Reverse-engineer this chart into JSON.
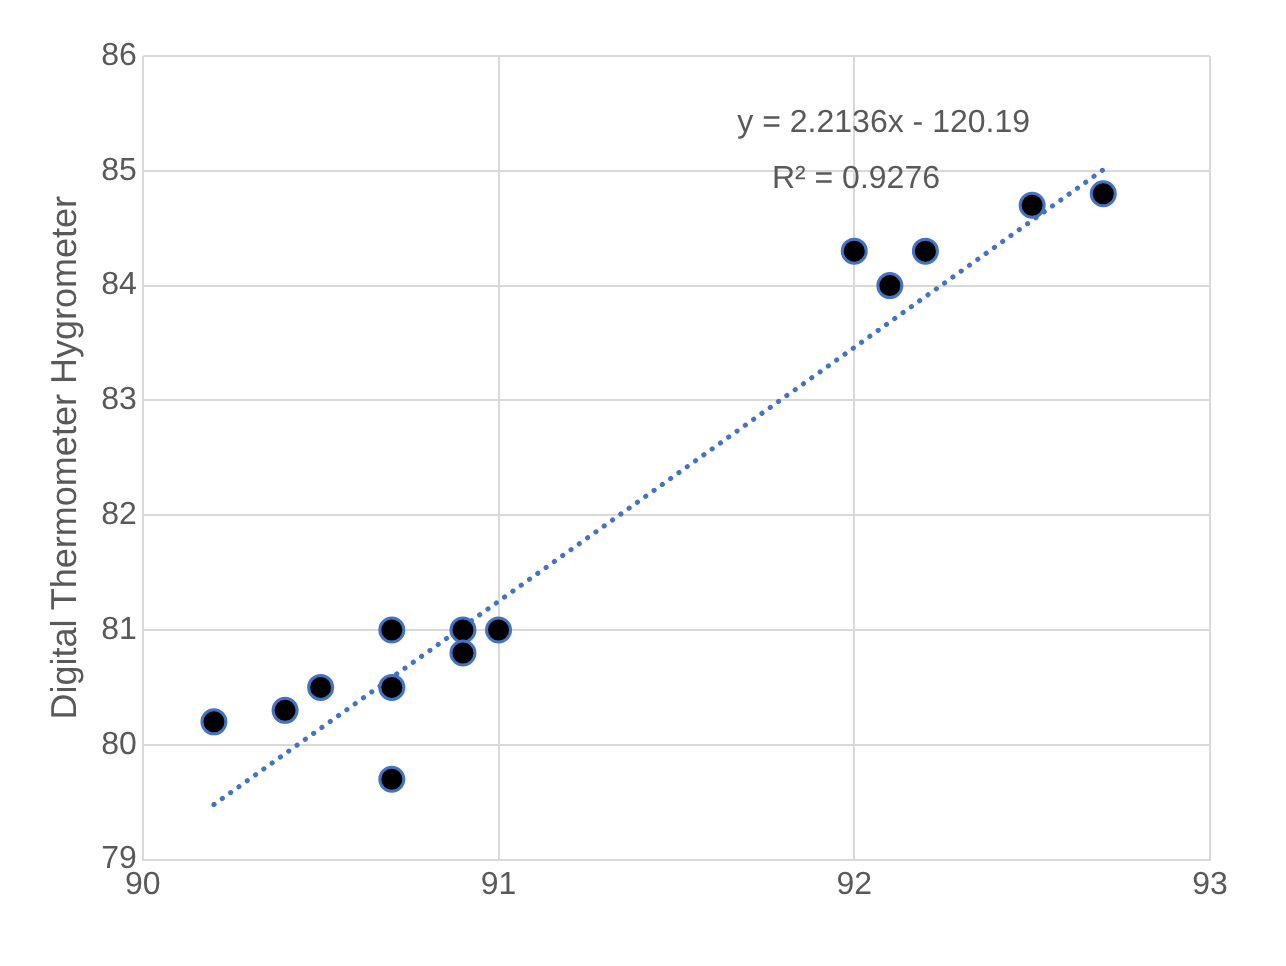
{
  "chart_data": {
    "type": "scatter",
    "ylabel": "Digital Thermometer Hygrometer",
    "xlim": [
      90,
      93
    ],
    "xticks": [
      90,
      91,
      92,
      93
    ],
    "ylim": [
      79,
      86
    ],
    "yticks": [
      79,
      80,
      81,
      82,
      83,
      84,
      85,
      86
    ],
    "grid": true,
    "legend": false,
    "annotations": [
      "y = 2.2136x - 120.19",
      "R² = 0.9276"
    ],
    "series": [
      {
        "type": "scatter",
        "color": "#000000",
        "marker": "circle",
        "x": [
          90.2,
          90.4,
          90.5,
          90.7,
          90.7,
          90.7,
          90.9,
          90.9,
          91.0,
          92.0,
          92.1,
          92.2,
          92.5,
          92.7
        ],
        "values": [
          80.2,
          80.3,
          80.5,
          81.0,
          80.5,
          79.7,
          81.0,
          80.8,
          81.0,
          84.3,
          84.0,
          84.3,
          84.7,
          84.8
        ]
      },
      {
        "type": "line",
        "color": "#4472c4",
        "marker": "none",
        "line_style": "dotted",
        "x": [
          90.2,
          92.7
        ],
        "values": [
          79.48,
          85.01
        ]
      }
    ]
  }
}
